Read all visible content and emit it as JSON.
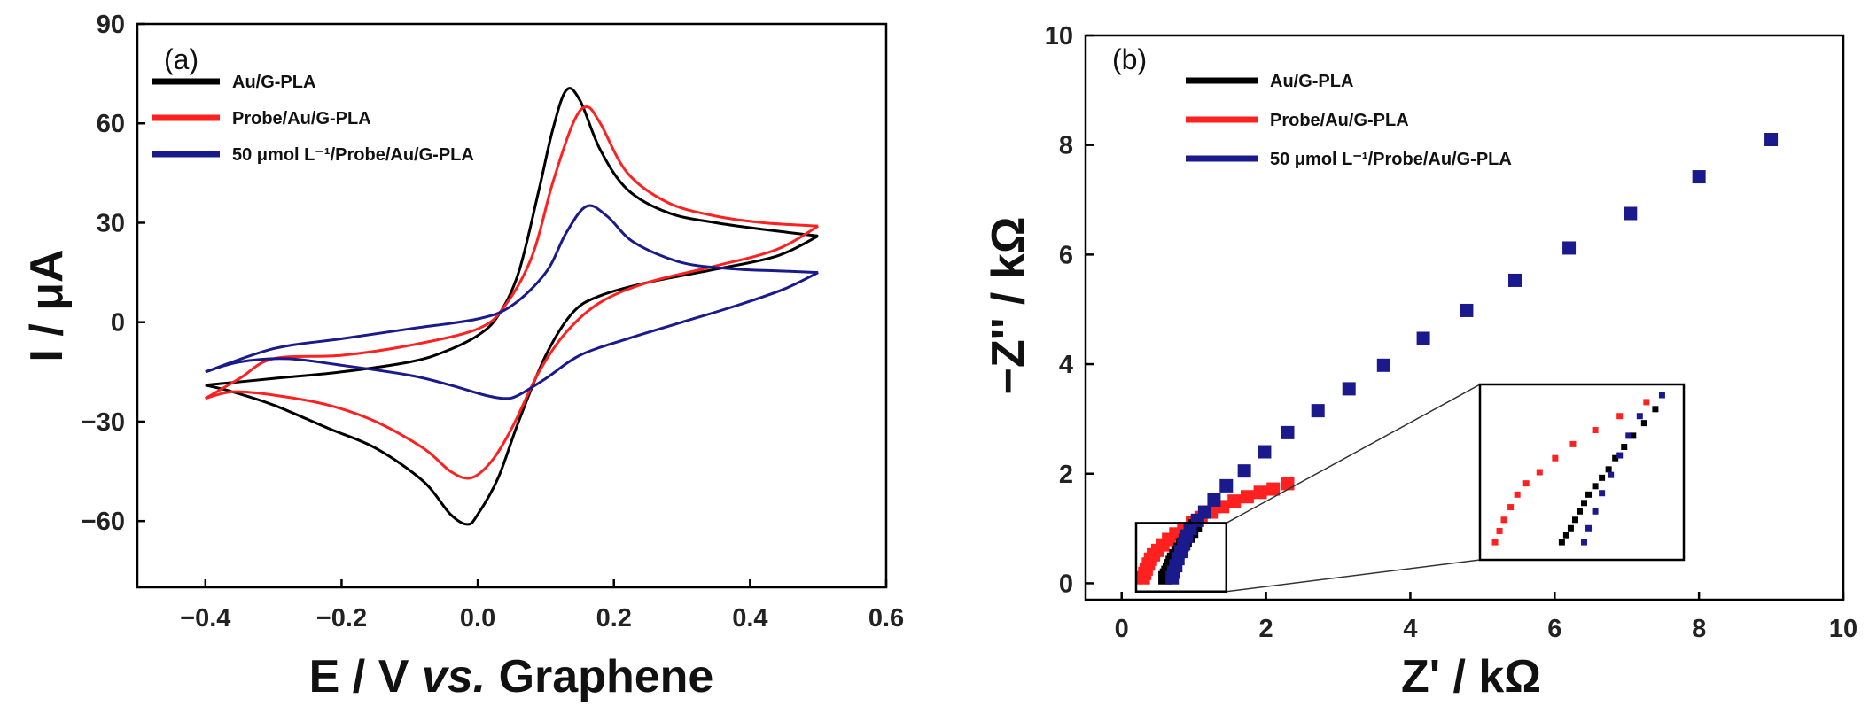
{
  "figure": {
    "panels": [
      "(a)",
      "(b)"
    ]
  },
  "colors": {
    "black": "#000000",
    "red": "#ff2020",
    "blue": "#1a1a8c"
  },
  "chart_data": [
    {
      "type": "line",
      "panel_label": "(a)",
      "xlabel_main": "E / V ",
      "xlabel_italic": "vs.",
      "xlabel_rest": " Graphene",
      "ylabel": "I / μA",
      "xlim": [
        -0.5,
        0.6
      ],
      "ylim": [
        -80,
        90
      ],
      "xticks": [
        -0.4,
        -0.2,
        0.0,
        0.2,
        0.4,
        0.6
      ],
      "xtick_labels": [
        "−0.4",
        "−0.2",
        "0.0",
        "0.2",
        "0.4",
        "0.6"
      ],
      "yticks": [
        -60,
        -30,
        0,
        30,
        60,
        90
      ],
      "ytick_labels": [
        "−60",
        "−30",
        "0",
        "30",
        "60",
        "90"
      ],
      "legend_position": "top-left",
      "series": [
        {
          "name": "Au/G-PLA",
          "color": "black",
          "anodic": [
            [
              -0.4,
              -19
            ],
            [
              -0.3,
              -17
            ],
            [
              -0.2,
              -15
            ],
            [
              -0.1,
              -12
            ],
            [
              -0.05,
              -9
            ],
            [
              0.0,
              -4
            ],
            [
              0.03,
              2
            ],
            [
              0.06,
              15
            ],
            [
              0.09,
              40
            ],
            [
              0.11,
              58
            ],
            [
              0.13,
              70
            ],
            [
              0.15,
              67
            ],
            [
              0.18,
              52
            ],
            [
              0.22,
              40
            ],
            [
              0.28,
              33
            ],
            [
              0.35,
              30
            ],
            [
              0.42,
              28
            ],
            [
              0.5,
              26
            ]
          ],
          "cathodic": [
            [
              0.5,
              26
            ],
            [
              0.44,
              20
            ],
            [
              0.35,
              16
            ],
            [
              0.25,
              12
            ],
            [
              0.18,
              8
            ],
            [
              0.14,
              3
            ],
            [
              0.1,
              -10
            ],
            [
              0.06,
              -30
            ],
            [
              0.03,
              -47
            ],
            [
              0.0,
              -58
            ],
            [
              -0.015,
              -61
            ],
            [
              -0.04,
              -58
            ],
            [
              -0.08,
              -48
            ],
            [
              -0.15,
              -38
            ],
            [
              -0.22,
              -32
            ],
            [
              -0.3,
              -25
            ],
            [
              -0.36,
              -21
            ],
            [
              -0.4,
              -19
            ]
          ]
        },
        {
          "name": "Probe/Au/G-PLA",
          "color": "red",
          "anodic": [
            [
              -0.4,
              -23
            ],
            [
              -0.35,
              -17
            ],
            [
              -0.3,
              -11
            ],
            [
              -0.2,
              -10
            ],
            [
              -0.1,
              -7
            ],
            [
              0.0,
              -2
            ],
            [
              0.04,
              5
            ],
            [
              0.08,
              20
            ],
            [
              0.11,
              42
            ],
            [
              0.14,
              60
            ],
            [
              0.16,
              65
            ],
            [
              0.18,
              60
            ],
            [
              0.22,
              45
            ],
            [
              0.28,
              36
            ],
            [
              0.35,
              32
            ],
            [
              0.42,
              30
            ],
            [
              0.5,
              29
            ]
          ],
          "cathodic": [
            [
              0.5,
              29
            ],
            [
              0.44,
              22
            ],
            [
              0.35,
              17
            ],
            [
              0.25,
              12
            ],
            [
              0.18,
              6
            ],
            [
              0.13,
              -3
            ],
            [
              0.09,
              -15
            ],
            [
              0.05,
              -32
            ],
            [
              0.02,
              -42
            ],
            [
              -0.01,
              -47
            ],
            [
              -0.04,
              -45
            ],
            [
              -0.08,
              -38
            ],
            [
              -0.15,
              -30
            ],
            [
              -0.22,
              -25
            ],
            [
              -0.3,
              -22
            ],
            [
              -0.36,
              -21
            ],
            [
              -0.4,
              -23
            ]
          ]
        },
        {
          "name": "50 μmol L⁻¹/Probe/Au/G-PLA",
          "color": "blue",
          "anodic": [
            [
              -0.4,
              -15
            ],
            [
              -0.3,
              -8
            ],
            [
              -0.2,
              -5
            ],
            [
              -0.1,
              -2
            ],
            [
              0.0,
              1
            ],
            [
              0.05,
              5
            ],
            [
              0.1,
              15
            ],
            [
              0.13,
              27
            ],
            [
              0.16,
              35
            ],
            [
              0.19,
              32
            ],
            [
              0.23,
              24
            ],
            [
              0.3,
              18
            ],
            [
              0.38,
              16
            ],
            [
              0.44,
              15.5
            ],
            [
              0.5,
              15
            ]
          ],
          "cathodic": [
            [
              0.5,
              15
            ],
            [
              0.45,
              10
            ],
            [
              0.38,
              5
            ],
            [
              0.3,
              0
            ],
            [
              0.22,
              -5
            ],
            [
              0.15,
              -10
            ],
            [
              0.1,
              -17
            ],
            [
              0.06,
              -22
            ],
            [
              0.04,
              -23
            ],
            [
              0.01,
              -22
            ],
            [
              -0.04,
              -19
            ],
            [
              -0.1,
              -16
            ],
            [
              -0.2,
              -13
            ],
            [
              -0.28,
              -11
            ],
            [
              -0.35,
              -12
            ],
            [
              -0.4,
              -15
            ]
          ]
        }
      ]
    },
    {
      "type": "scatter",
      "panel_label": "(b)",
      "xlabel": "Z' / kΩ",
      "ylabel": "−Z'' / kΩ",
      "xlim": [
        -0.5,
        10
      ],
      "ylim": [
        -0.3,
        10
      ],
      "xticks": [
        0,
        2,
        4,
        6,
        8,
        10
      ],
      "xtick_labels": [
        "0",
        "2",
        "4",
        "6",
        "8",
        "10"
      ],
      "yticks": [
        0,
        2,
        4,
        6,
        8,
        10
      ],
      "ytick_labels": [
        "0",
        "2",
        "4",
        "6",
        "8",
        "10"
      ],
      "legend_position": "top-left",
      "series": [
        {
          "name": "Au/G-PLA",
          "color": "black",
          "points": [
            [
              0.6,
              0.1
            ],
            [
              0.62,
              0.15
            ],
            [
              0.64,
              0.2
            ],
            [
              0.66,
              0.26
            ],
            [
              0.68,
              0.32
            ],
            [
              0.7,
              0.38
            ],
            [
              0.72,
              0.44
            ],
            [
              0.75,
              0.5
            ],
            [
              0.78,
              0.56
            ],
            [
              0.81,
              0.62
            ],
            [
              0.84,
              0.7
            ],
            [
              0.88,
              0.78
            ],
            [
              0.92,
              0.86
            ],
            [
              0.97,
              0.95
            ],
            [
              1.02,
              1.05
            ]
          ]
        },
        {
          "name": "Probe/Au/G-PLA",
          "color": "red",
          "points": [
            [
              0.3,
              0.1
            ],
            [
              0.32,
              0.18
            ],
            [
              0.34,
              0.26
            ],
            [
              0.37,
              0.35
            ],
            [
              0.4,
              0.44
            ],
            [
              0.44,
              0.52
            ],
            [
              0.5,
              0.6
            ],
            [
              0.57,
              0.7
            ],
            [
              0.65,
              0.8
            ],
            [
              0.75,
              0.9
            ],
            [
              0.86,
              1.0
            ],
            [
              0.98,
              1.1
            ],
            [
              1.1,
              1.2
            ],
            [
              1.24,
              1.3
            ],
            [
              1.4,
              1.4
            ],
            [
              1.56,
              1.5
            ],
            [
              1.74,
              1.58
            ],
            [
              1.92,
              1.66
            ],
            [
              2.1,
              1.72
            ],
            [
              2.3,
              1.82
            ]
          ]
        },
        {
          "name": "50 μmol L⁻¹/Probe/Au/G-PLA",
          "color": "blue",
          "points": [
            [
              0.7,
              0.1
            ],
            [
              0.72,
              0.2
            ],
            [
              0.75,
              0.32
            ],
            [
              0.78,
              0.45
            ],
            [
              0.82,
              0.58
            ],
            [
              0.86,
              0.72
            ],
            [
              0.9,
              0.86
            ],
            [
              0.95,
              1.0
            ],
            [
              1.05,
              1.15
            ],
            [
              1.15,
              1.3
            ],
            [
              1.28,
              1.52
            ],
            [
              1.45,
              1.78
            ],
            [
              1.7,
              2.05
            ],
            [
              1.98,
              2.4
            ],
            [
              2.3,
              2.75
            ],
            [
              2.72,
              3.15
            ],
            [
              3.15,
              3.55
            ],
            [
              3.63,
              3.98
            ],
            [
              4.18,
              4.47
            ],
            [
              4.78,
              4.98
            ],
            [
              5.45,
              5.53
            ],
            [
              6.2,
              6.12
            ],
            [
              7.05,
              6.75
            ],
            [
              8.0,
              7.42
            ],
            [
              9.0,
              8.1
            ]
          ]
        }
      ]
    }
  ]
}
